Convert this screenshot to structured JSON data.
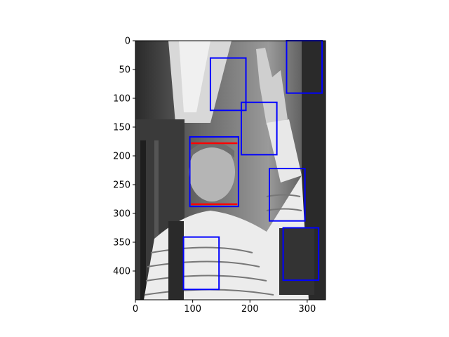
{
  "chart_data": {
    "type": "image",
    "description_free": true,
    "image_shape": {
      "width": 332,
      "height": 450
    },
    "xlim": [
      0,
      332
    ],
    "ylim": [
      450,
      0
    ],
    "y_inverted": true,
    "grid": false,
    "x_ticks": [
      0,
      100,
      200,
      300
    ],
    "y_ticks": [
      0,
      50,
      100,
      150,
      200,
      250,
      300,
      350,
      400
    ],
    "colors": {
      "detection_box": "#0000ff",
      "face_line": "#ff0000",
      "axis": "#000000"
    },
    "boxes": [
      {
        "x0": 131,
        "y0": 30,
        "x1": 193,
        "y1": 121
      },
      {
        "x0": 185,
        "y0": 107,
        "x1": 247,
        "y1": 198
      },
      {
        "x0": 264,
        "y0": 0,
        "x1": 326,
        "y1": 91
      },
      {
        "x0": 95,
        "y0": 167,
        "x1": 180,
        "y1": 288
      },
      {
        "x0": 234,
        "y0": 222,
        "x1": 296,
        "y1": 313
      },
      {
        "x0": 258,
        "y0": 325,
        "x1": 320,
        "y1": 416
      },
      {
        "x0": 84,
        "y0": 341,
        "x1": 146,
        "y1": 432
      }
    ],
    "red_lines": [
      {
        "x0": 97,
        "x1": 178,
        "y": 178
      },
      {
        "x0": 97,
        "x1": 178,
        "y": 284
      }
    ]
  }
}
